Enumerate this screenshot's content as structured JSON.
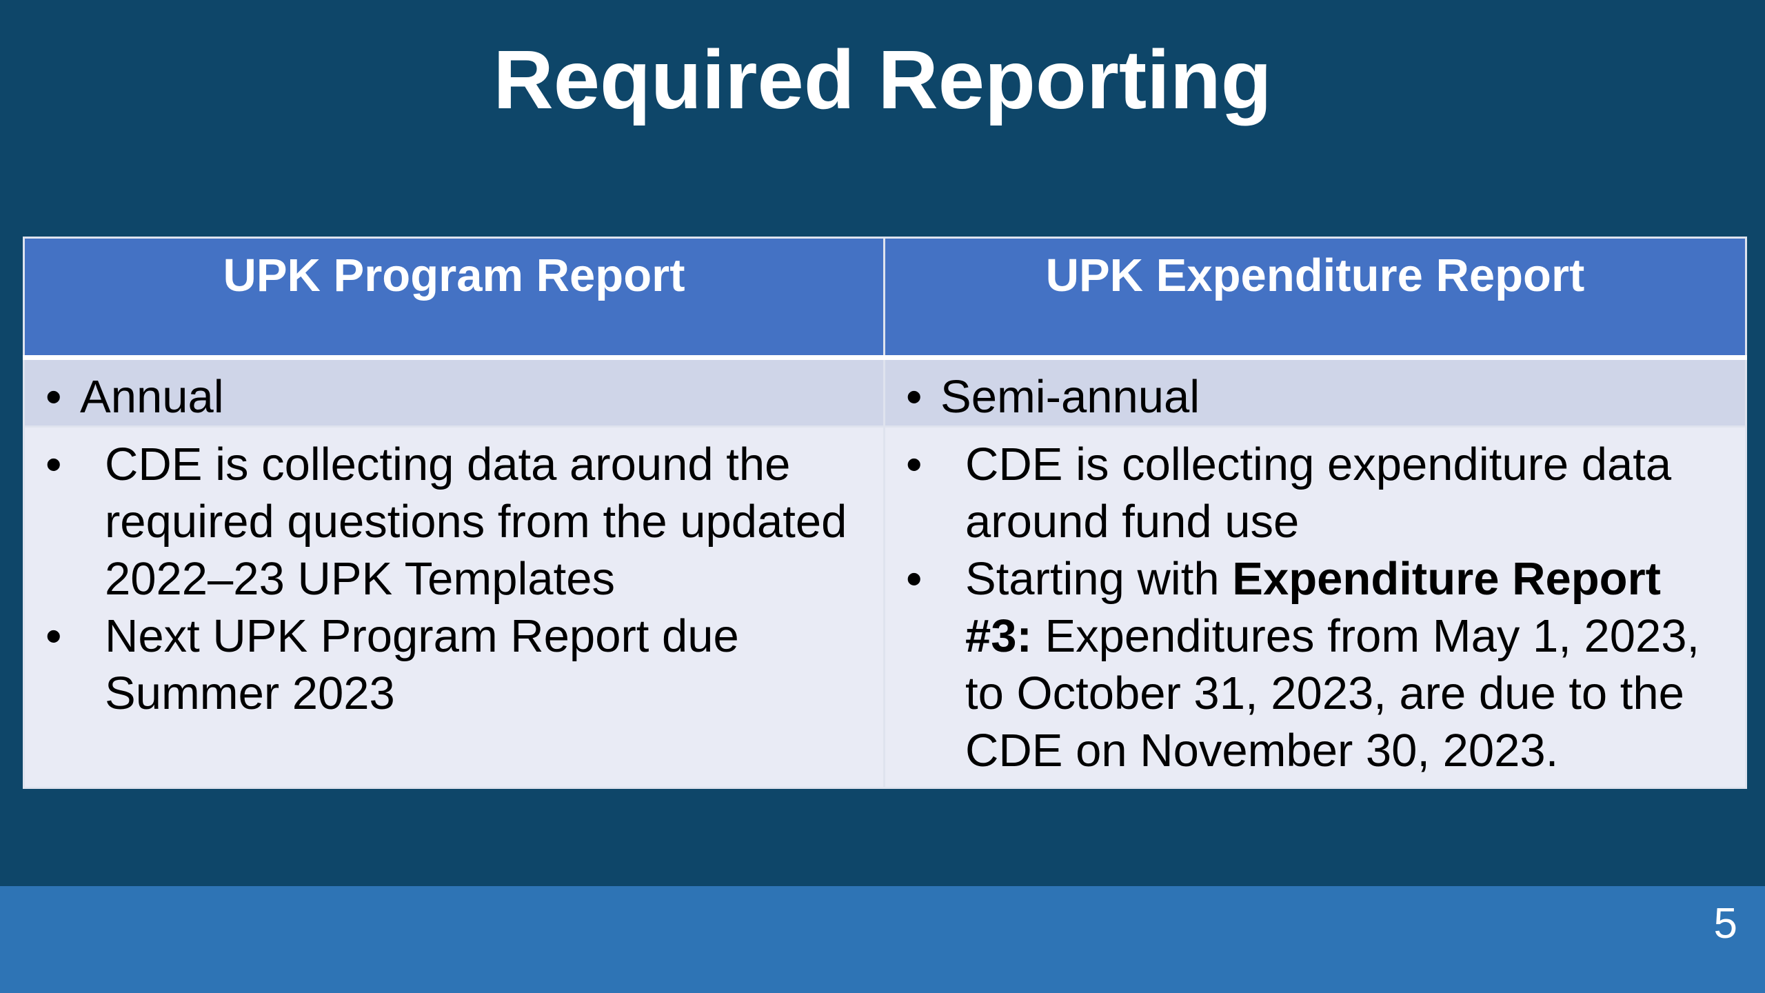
{
  "slide": {
    "title": "Required Reporting",
    "page_number": "5"
  },
  "table": {
    "headers": [
      "UPK Program Report",
      "UPK Expenditure Report"
    ],
    "frequency": [
      "Annual",
      "Semi-annual"
    ],
    "program_details": [
      "CDE is collecting data around the required questions from the updated 2022–23 UPK Templates",
      "Next UPK Program Report due Summer 2023"
    ],
    "expenditure_details": {
      "item1": "CDE is collecting expenditure data around fund use",
      "item2_prefix": "Starting with ",
      "item2_bold": "Expenditure Report #3:",
      "item2_rest": " Expenditures from May 1, 2023, to October 31, 2023, are due to the CDE on November 30, 2023."
    }
  },
  "bullet": "•",
  "colors": {
    "background": "#0e4669",
    "header_fill": "#4472c4",
    "frequency_row_fill": "#cfd5e8",
    "detail_row_fill": "#e9ebf5",
    "footer_bar": "#2e74b5",
    "title_text": "#ffffff"
  }
}
